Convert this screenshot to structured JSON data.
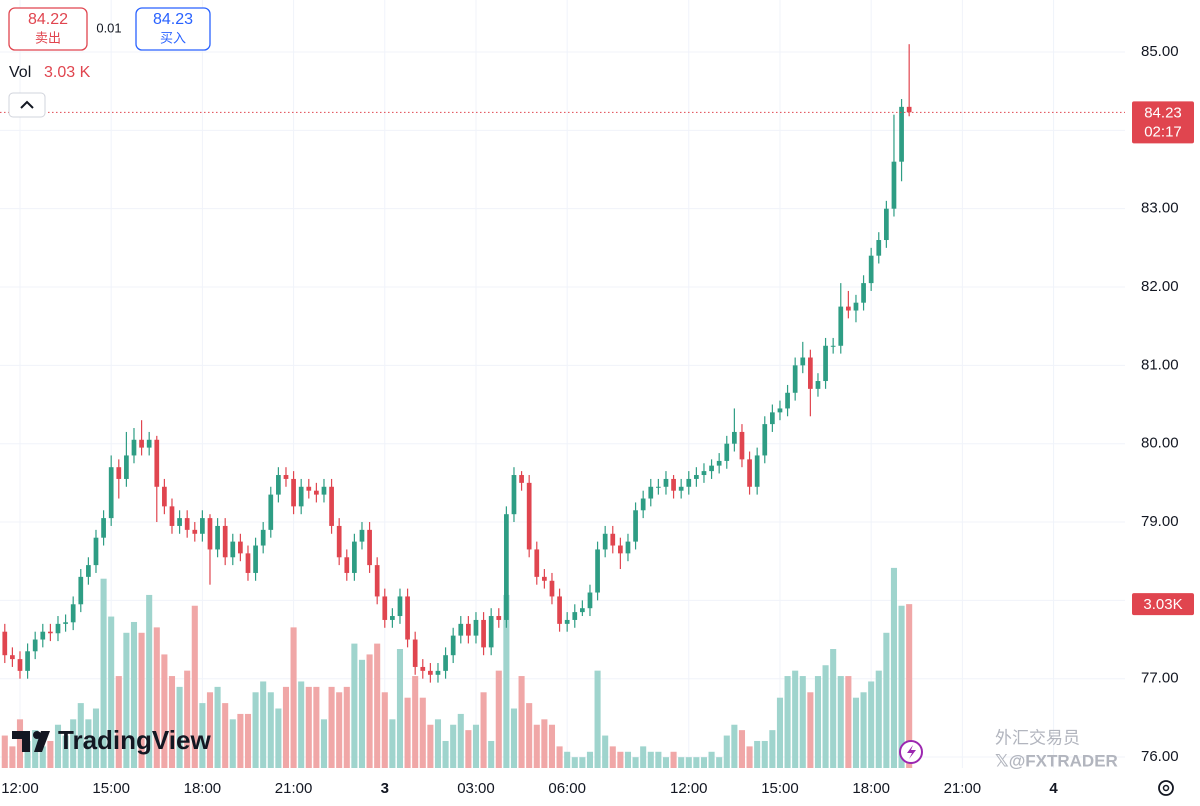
{
  "chart_data": {
    "type": "candlestick",
    "bid": {
      "price": "84.22",
      "label": "卖出"
    },
    "spread": "0.01",
    "ask": {
      "price": "84.23",
      "label": "买入"
    },
    "volume_legend": {
      "name": "Vol",
      "value": "3.03 K"
    },
    "last_price": {
      "value": 84.23,
      "label": "84.23",
      "countdown": "02:17"
    },
    "last_volume": {
      "value": 3.03,
      "label": "3.03K"
    },
    "logo": "TradingView",
    "watermark": [
      "外汇交易员",
      "𝕏@FXTRADER"
    ],
    "up_color": "#2e9d84",
    "down_color": "#e0454f",
    "up_volume_color": "#9fd4cd",
    "down_volume_color": "#f0a7a7",
    "xlim": [
      -0.63,
      147.4
    ],
    "xticks": [
      {
        "value": 2,
        "label": "12:00"
      },
      {
        "value": 14,
        "label": "15:00"
      },
      {
        "value": 26,
        "label": "18:00"
      },
      {
        "value": 38,
        "label": "21:00"
      },
      {
        "value": 50,
        "label": "3"
      },
      {
        "value": 62,
        "label": "03:00"
      },
      {
        "value": 74,
        "label": "06:00"
      },
      {
        "value": 90,
        "label": "12:00"
      },
      {
        "value": 102,
        "label": "15:00"
      },
      {
        "value": 114,
        "label": "18:00"
      },
      {
        "value": 126,
        "label": "21:00"
      },
      {
        "value": 138,
        "label": "4"
      }
    ],
    "ylim": [
      75.86,
      85.664
    ],
    "yticks": [
      {
        "value": 85,
        "label": "85.00"
      },
      {
        "value": 84,
        "label": "84.00"
      },
      {
        "value": 83,
        "label": "83.00"
      },
      {
        "value": 82,
        "label": "82.00"
      },
      {
        "value": 81,
        "label": "81.00"
      },
      {
        "value": 80,
        "label": "80.00"
      },
      {
        "value": 79,
        "label": "79.00"
      },
      {
        "value": 78,
        "label": "78.00"
      },
      {
        "value": 77,
        "label": "77.00"
      },
      {
        "value": 76,
        "label": "76.00"
      }
    ],
    "y2lim": [
      0,
      14.2
    ],
    "grid": true,
    "candles": [
      [
        77.6,
        77.7,
        77.2,
        77.3
      ],
      [
        77.3,
        77.4,
        77.15,
        77.25
      ],
      [
        77.25,
        77.35,
        77.0,
        77.1
      ],
      [
        77.1,
        77.45,
        77.0,
        77.35
      ],
      [
        77.35,
        77.6,
        77.25,
        77.5
      ],
      [
        77.5,
        77.7,
        77.4,
        77.6
      ],
      [
        77.6,
        77.7,
        77.48,
        77.58
      ],
      [
        77.58,
        77.8,
        77.48,
        77.7
      ],
      [
        77.7,
        77.82,
        77.6,
        77.72
      ],
      [
        77.72,
        78.05,
        77.62,
        77.95
      ],
      [
        77.95,
        78.4,
        77.85,
        78.3
      ],
      [
        78.3,
        78.55,
        78.2,
        78.45
      ],
      [
        78.45,
        78.9,
        78.35,
        78.8
      ],
      [
        78.8,
        79.15,
        78.7,
        79.05
      ],
      [
        79.05,
        79.85,
        78.95,
        79.7
      ],
      [
        79.7,
        79.8,
        79.3,
        79.55
      ],
      [
        79.55,
        80.15,
        79.45,
        79.85
      ],
      [
        79.85,
        80.2,
        79.75,
        80.05
      ],
      [
        80.05,
        80.3,
        79.85,
        79.95
      ],
      [
        79.95,
        80.15,
        79.85,
        80.05
      ],
      [
        80.05,
        80.1,
        79.0,
        79.45
      ],
      [
        79.45,
        79.55,
        79.1,
        79.2
      ],
      [
        79.2,
        79.3,
        78.85,
        78.95
      ],
      [
        78.95,
        79.15,
        78.85,
        79.05
      ],
      [
        79.05,
        79.15,
        78.8,
        78.9
      ],
      [
        78.9,
        79.0,
        78.75,
        78.85
      ],
      [
        78.85,
        79.15,
        78.75,
        79.05
      ],
      [
        79.05,
        79.1,
        78.2,
        78.65
      ],
      [
        78.65,
        79.05,
        78.55,
        78.95
      ],
      [
        78.95,
        79.05,
        78.45,
        78.55
      ],
      [
        78.55,
        78.85,
        78.45,
        78.75
      ],
      [
        78.75,
        78.85,
        78.5,
        78.6
      ],
      [
        78.6,
        78.7,
        78.25,
        78.35
      ],
      [
        78.35,
        78.8,
        78.25,
        78.7
      ],
      [
        78.7,
        79.0,
        78.6,
        78.9
      ],
      [
        78.9,
        79.45,
        78.8,
        79.35
      ],
      [
        79.35,
        79.7,
        79.25,
        79.6
      ],
      [
        79.6,
        79.7,
        79.45,
        79.55
      ],
      [
        79.55,
        79.65,
        79.1,
        79.2
      ],
      [
        79.2,
        79.55,
        79.1,
        79.45
      ],
      [
        79.45,
        79.55,
        79.3,
        79.4
      ],
      [
        79.4,
        79.5,
        79.25,
        79.35
      ],
      [
        79.35,
        79.55,
        79.25,
        79.45
      ],
      [
        79.45,
        79.55,
        78.85,
        78.95
      ],
      [
        78.95,
        79.05,
        78.45,
        78.55
      ],
      [
        78.55,
        78.65,
        78.25,
        78.35
      ],
      [
        78.35,
        78.85,
        78.25,
        78.75
      ],
      [
        78.75,
        79.0,
        78.65,
        78.9
      ],
      [
        78.9,
        79.0,
        78.35,
        78.45
      ],
      [
        78.45,
        78.55,
        77.95,
        78.05
      ],
      [
        78.05,
        78.15,
        77.65,
        77.75
      ],
      [
        77.75,
        77.9,
        77.65,
        77.8
      ],
      [
        77.8,
        78.15,
        77.7,
        78.05
      ],
      [
        78.05,
        78.15,
        77.4,
        77.5
      ],
      [
        77.5,
        77.6,
        77.05,
        77.15
      ],
      [
        77.15,
        77.25,
        77.0,
        77.1
      ],
      [
        77.1,
        77.2,
        76.95,
        77.05
      ],
      [
        77.05,
        77.2,
        76.95,
        77.1
      ],
      [
        77.1,
        77.4,
        77.0,
        77.3
      ],
      [
        77.3,
        77.65,
        77.2,
        77.55
      ],
      [
        77.55,
        77.8,
        77.45,
        77.7
      ],
      [
        77.7,
        77.8,
        77.45,
        77.55
      ],
      [
        77.55,
        77.85,
        77.45,
        77.75
      ],
      [
        77.75,
        77.85,
        77.3,
        77.4
      ],
      [
        77.4,
        77.9,
        77.3,
        77.8
      ],
      [
        77.8,
        77.9,
        77.65,
        77.75
      ],
      [
        77.75,
        79.2,
        77.65,
        79.1
      ],
      [
        79.1,
        79.7,
        79.0,
        79.6
      ],
      [
        79.6,
        79.65,
        79.4,
        79.5
      ],
      [
        79.5,
        79.6,
        78.55,
        78.65
      ],
      [
        78.65,
        78.75,
        78.2,
        78.3
      ],
      [
        78.3,
        78.4,
        78.15,
        78.25
      ],
      [
        78.25,
        78.35,
        77.95,
        78.05
      ],
      [
        78.05,
        78.15,
        77.6,
        77.7
      ],
      [
        77.7,
        77.85,
        77.6,
        77.75
      ],
      [
        77.75,
        77.95,
        77.65,
        77.85
      ],
      [
        77.85,
        78.0,
        77.8,
        77.9
      ],
      [
        77.9,
        78.2,
        77.8,
        78.1
      ],
      [
        78.1,
        78.75,
        78.0,
        78.65
      ],
      [
        78.65,
        78.95,
        78.55,
        78.85
      ],
      [
        78.85,
        78.95,
        78.6,
        78.7
      ],
      [
        78.7,
        78.8,
        78.4,
        78.6
      ],
      [
        78.6,
        78.85,
        78.5,
        78.75
      ],
      [
        78.75,
        79.25,
        78.65,
        79.15
      ],
      [
        79.15,
        79.4,
        79.05,
        79.3
      ],
      [
        79.3,
        79.55,
        79.2,
        79.45
      ],
      [
        79.45,
        79.55,
        79.35,
        79.45
      ],
      [
        79.45,
        79.65,
        79.35,
        79.55
      ],
      [
        79.55,
        79.6,
        79.3,
        79.4
      ],
      [
        79.4,
        79.55,
        79.3,
        79.45
      ],
      [
        79.45,
        79.65,
        79.35,
        79.55
      ],
      [
        79.55,
        79.7,
        79.45,
        79.6
      ],
      [
        79.6,
        79.75,
        79.5,
        79.65
      ],
      [
        79.65,
        79.8,
        79.55,
        79.72
      ],
      [
        79.72,
        79.88,
        79.62,
        79.78
      ],
      [
        79.78,
        80.1,
        79.68,
        80.0
      ],
      [
        80.0,
        80.45,
        79.9,
        80.15
      ],
      [
        80.15,
        80.25,
        79.7,
        79.8
      ],
      [
        79.8,
        79.9,
        79.35,
        79.45
      ],
      [
        79.45,
        79.95,
        79.35,
        79.85
      ],
      [
        79.85,
        80.35,
        79.75,
        80.25
      ],
      [
        80.25,
        80.5,
        80.15,
        80.4
      ],
      [
        80.4,
        80.55,
        80.3,
        80.45
      ],
      [
        80.45,
        80.75,
        80.35,
        80.65
      ],
      [
        80.65,
        81.1,
        80.55,
        81.0
      ],
      [
        81.0,
        81.3,
        80.9,
        81.1
      ],
      [
        81.1,
        81.2,
        80.35,
        80.7
      ],
      [
        80.7,
        80.9,
        80.6,
        80.8
      ],
      [
        80.8,
        81.35,
        80.7,
        81.25
      ],
      [
        81.25,
        81.35,
        81.15,
        81.25
      ],
      [
        81.25,
        82.05,
        81.15,
        81.75
      ],
      [
        81.75,
        81.95,
        81.6,
        81.7
      ],
      [
        81.7,
        81.9,
        81.55,
        81.8
      ],
      [
        81.8,
        82.15,
        81.7,
        82.05
      ],
      [
        82.05,
        82.5,
        81.95,
        82.4
      ],
      [
        82.4,
        82.7,
        82.3,
        82.6
      ],
      [
        82.6,
        83.1,
        82.5,
        83.0
      ],
      [
        83.0,
        84.2,
        82.9,
        83.6
      ],
      [
        83.6,
        84.4,
        83.35,
        84.3
      ],
      [
        84.3,
        85.1,
        84.18,
        84.23
      ]
    ],
    "volumes": [
      0.6,
      0.4,
      0.9,
      0.5,
      0.7,
      0.4,
      0.5,
      0.8,
      0.6,
      0.9,
      1.2,
      0.9,
      1.1,
      3.5,
      2.8,
      1.7,
      2.5,
      2.7,
      2.5,
      3.2,
      2.6,
      2.1,
      1.7,
      1.5,
      1.8,
      3.0,
      1.2,
      1.4,
      1.5,
      1.2,
      0.9,
      1.0,
      1.0,
      1.4,
      1.6,
      1.4,
      1.1,
      1.5,
      2.6,
      1.6,
      1.5,
      1.5,
      0.9,
      1.5,
      1.4,
      1.5,
      2.3,
      2.0,
      2.1,
      2.3,
      1.4,
      0.9,
      2.2,
      1.3,
      1.7,
      1.3,
      0.8,
      0.9,
      0.5,
      0.8,
      1.0,
      0.7,
      0.8,
      1.4,
      0.5,
      1.8,
      3.2,
      1.1,
      1.7,
      1.2,
      0.8,
      0.9,
      0.8,
      0.4,
      0.3,
      0.2,
      0.2,
      0.3,
      1.8,
      0.6,
      0.4,
      0.3,
      0.3,
      0.2,
      0.4,
      0.3,
      0.3,
      0.2,
      0.3,
      0.2,
      0.2,
      0.2,
      0.2,
      0.3,
      0.2,
      0.6,
      0.8,
      0.7,
      0.4,
      0.5,
      0.5,
      0.7,
      1.3,
      1.7,
      1.8,
      1.7,
      1.4,
      1.7,
      1.9,
      2.2,
      1.7,
      1.7,
      1.3,
      1.4,
      1.6,
      1.8,
      2.5,
      3.7,
      3.0,
      3.03
    ]
  }
}
